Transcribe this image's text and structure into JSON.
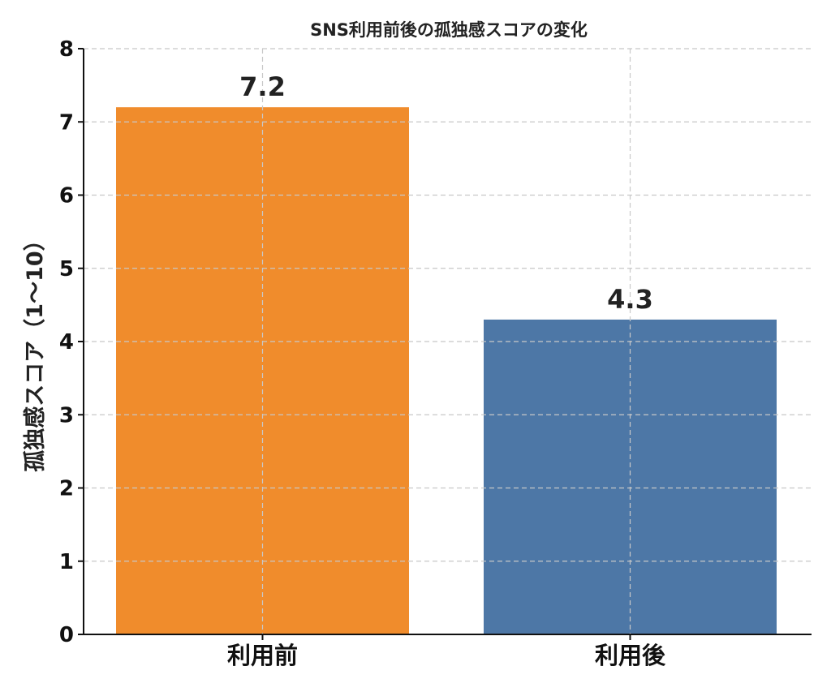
{
  "chart_data": {
    "type": "bar",
    "title": "SNS利用前後の孤独感スコアの変化",
    "xlabel": "",
    "ylabel": "孤独感スコア（1〜10）",
    "categories": [
      "利用前",
      "利用後"
    ],
    "values": [
      7.2,
      4.3
    ],
    "data_labels": [
      "7.2",
      "4.3"
    ],
    "colors": [
      "#f08c2c",
      "#4d77a6"
    ],
    "ylim": [
      0,
      8
    ],
    "yticks": [
      "0",
      "1",
      "2",
      "3",
      "4",
      "5",
      "6",
      "7",
      "8"
    ],
    "grid": true
  }
}
